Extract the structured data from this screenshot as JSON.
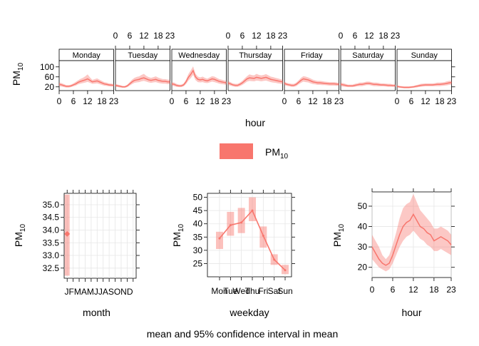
{
  "colors": {
    "series": "#f8766d",
    "band": "#f8766d",
    "grid": "#e6e6e6",
    "axis": "#000000"
  },
  "chart_data": [
    {
      "type": "line",
      "panel": "hour-by-weekday",
      "xlabel": "hour",
      "ylabel": "PM",
      "ylabel_sub": "10",
      "xlim": [
        0,
        23
      ],
      "ylim": [
        5,
        125
      ],
      "x_ticks": [
        "0",
        "6",
        "12",
        "18",
        "23"
      ],
      "y_ticks": [
        "20",
        "60",
        "100"
      ],
      "days": [
        "Monday",
        "Tuesday",
        "Wednesday",
        "Thursday",
        "Friday",
        "Saturday",
        "Sunday"
      ],
      "x": [
        0,
        1,
        2,
        3,
        4,
        5,
        6,
        7,
        8,
        9,
        10,
        11,
        12,
        13,
        14,
        15,
        16,
        17,
        18,
        19,
        20,
        21,
        22,
        23
      ],
      "series": [
        {
          "day": "Monday",
          "mean": [
            30,
            28,
            25,
            22,
            22,
            24,
            28,
            32,
            38,
            42,
            45,
            48,
            52,
            46,
            40,
            42,
            44,
            40,
            36,
            32,
            30,
            28,
            27,
            26
          ],
          "lower": [
            22,
            21,
            19,
            17,
            17,
            19,
            22,
            25,
            30,
            33,
            35,
            37,
            40,
            36,
            32,
            33,
            34,
            31,
            28,
            25,
            24,
            22,
            21,
            21
          ],
          "upper": [
            38,
            35,
            31,
            27,
            27,
            29,
            34,
            40,
            46,
            52,
            56,
            62,
            70,
            58,
            48,
            51,
            54,
            49,
            44,
            39,
            37,
            34,
            33,
            32
          ]
        },
        {
          "day": "Tuesday",
          "mean": [
            26,
            24,
            22,
            20,
            20,
            24,
            32,
            40,
            46,
            48,
            50,
            54,
            56,
            52,
            48,
            46,
            48,
            50,
            46,
            44,
            42,
            42,
            40,
            40
          ],
          "lower": [
            20,
            19,
            17,
            16,
            16,
            19,
            25,
            31,
            36,
            38,
            39,
            42,
            44,
            41,
            38,
            36,
            38,
            39,
            36,
            34,
            33,
            33,
            31,
            31
          ],
          "upper": [
            32,
            29,
            27,
            24,
            24,
            29,
            39,
            49,
            56,
            60,
            62,
            68,
            72,
            64,
            59,
            56,
            59,
            62,
            57,
            54,
            51,
            51,
            49,
            49
          ]
        },
        {
          "day": "Wednesday",
          "mean": [
            32,
            30,
            26,
            24,
            24,
            28,
            40,
            58,
            70,
            85,
            60,
            50,
            48,
            50,
            46,
            44,
            48,
            52,
            50,
            46,
            42,
            40,
            38,
            36
          ],
          "lower": [
            25,
            23,
            20,
            19,
            19,
            22,
            31,
            45,
            55,
            68,
            47,
            39,
            38,
            39,
            36,
            35,
            38,
            41,
            39,
            36,
            33,
            31,
            30,
            28
          ],
          "upper": [
            39,
            37,
            32,
            29,
            29,
            34,
            49,
            71,
            86,
            102,
            73,
            61,
            58,
            61,
            56,
            53,
            58,
            63,
            61,
            56,
            51,
            49,
            46,
            44
          ]
        },
        {
          "day": "Thursday",
          "mean": [
            36,
            32,
            28,
            26,
            26,
            30,
            36,
            44,
            52,
            56,
            55,
            54,
            58,
            56,
            54,
            56,
            58,
            54,
            50,
            48,
            46,
            44,
            42,
            40
          ],
          "lower": [
            28,
            25,
            22,
            20,
            20,
            23,
            28,
            34,
            41,
            44,
            43,
            42,
            45,
            44,
            42,
            44,
            45,
            42,
            39,
            37,
            36,
            34,
            33,
            31
          ],
          "upper": [
            44,
            39,
            34,
            32,
            32,
            37,
            44,
            54,
            63,
            70,
            67,
            66,
            72,
            68,
            66,
            68,
            71,
            66,
            61,
            59,
            56,
            54,
            51,
            49
          ]
        },
        {
          "day": "Friday",
          "mean": [
            34,
            30,
            28,
            26,
            26,
            30,
            38,
            46,
            52,
            50,
            48,
            44,
            40,
            38,
            36,
            36,
            35,
            34,
            33,
            32,
            32,
            32,
            31,
            30
          ],
          "lower": [
            27,
            24,
            22,
            20,
            20,
            23,
            30,
            36,
            41,
            39,
            38,
            34,
            31,
            30,
            28,
            28,
            27,
            27,
            26,
            25,
            25,
            25,
            24,
            24
          ],
          "upper": [
            41,
            36,
            34,
            32,
            32,
            37,
            46,
            56,
            63,
            61,
            58,
            54,
            49,
            46,
            44,
            44,
            43,
            41,
            40,
            39,
            39,
            39,
            38,
            36
          ]
        },
        {
          "day": "Saturday",
          "mean": [
            30,
            28,
            26,
            24,
            24,
            24,
            26,
            28,
            30,
            30,
            32,
            34,
            34,
            32,
            30,
            30,
            29,
            28,
            28,
            27,
            26,
            26,
            25,
            25
          ],
          "lower": [
            23,
            21,
            20,
            19,
            19,
            19,
            20,
            22,
            23,
            23,
            25,
            27,
            27,
            25,
            23,
            23,
            22,
            22,
            22,
            21,
            20,
            20,
            20,
            20
          ],
          "upper": [
            37,
            35,
            32,
            29,
            29,
            29,
            32,
            34,
            37,
            37,
            39,
            41,
            41,
            39,
            37,
            37,
            36,
            34,
            34,
            33,
            32,
            32,
            30,
            30
          ]
        },
        {
          "day": "Sunday",
          "mean": [
            22,
            20,
            19,
            18,
            18,
            18,
            19,
            20,
            22,
            24,
            26,
            27,
            28,
            28,
            28,
            28,
            29,
            30,
            30,
            31,
            32,
            34,
            36,
            37
          ],
          "lower": [
            17,
            16,
            15,
            14,
            14,
            14,
            15,
            16,
            17,
            19,
            20,
            21,
            22,
            22,
            22,
            22,
            23,
            23,
            23,
            24,
            25,
            26,
            28,
            29
          ],
          "upper": [
            27,
            24,
            23,
            22,
            22,
            22,
            23,
            24,
            27,
            29,
            32,
            33,
            34,
            34,
            34,
            34,
            35,
            37,
            37,
            38,
            39,
            42,
            44,
            45
          ]
        }
      ]
    },
    {
      "type": "scatter",
      "panel": "month",
      "xlabel": "month",
      "ylabel": "PM",
      "ylabel_sub": "10",
      "categories": [
        "J",
        "F",
        "M",
        "A",
        "M",
        "J",
        "J",
        "A",
        "S",
        "O",
        "N",
        "D"
      ],
      "x_tick_text": "JFMAMJJASOND",
      "ylim": [
        32.1,
        35.45
      ],
      "y_ticks": [
        32.5,
        33.0,
        33.5,
        34.0,
        34.5,
        35.0
      ],
      "y_tick_labels": [
        "32.5",
        "33.0",
        "33.5",
        "34.0",
        "34.5",
        "35.0"
      ],
      "points": [
        {
          "category": "J",
          "mean": 33.85,
          "lower": 32.2,
          "upper": 35.4
        }
      ]
    },
    {
      "type": "line",
      "panel": "weekday",
      "xlabel": "weekday",
      "ylabel": "PM",
      "ylabel_sub": "10",
      "categories": [
        "Mon",
        "Tue",
        "Wed",
        "Thu",
        "Fri",
        "Sat",
        "Sun"
      ],
      "ylim": [
        20,
        51.5
      ],
      "y_ticks": [
        25,
        30,
        35,
        40,
        45,
        50
      ],
      "y_tick_labels": [
        "25",
        "30",
        "35",
        "40",
        "45",
        "50"
      ],
      "mean": [
        34.5,
        39.5,
        40.5,
        45,
        35.5,
        26.5,
        22.5
      ],
      "lower": [
        30.5,
        35.5,
        36.5,
        41,
        31,
        24.5,
        21
      ],
      "upper": [
        37,
        44.5,
        46,
        50,
        39,
        28.5,
        24.5
      ]
    },
    {
      "type": "line",
      "panel": "hour",
      "xlabel": "hour",
      "ylabel": "PM",
      "ylabel_sub": "10",
      "xlim": [
        0,
        23
      ],
      "ylim": [
        15,
        57
      ],
      "x_ticks": [
        0,
        6,
        12,
        18,
        23
      ],
      "x_tick_labels": [
        "0",
        "6",
        "12",
        "18",
        "23"
      ],
      "y_ticks": [
        20,
        30,
        40,
        50
      ],
      "y_tick_labels": [
        "20",
        "30",
        "40",
        "50"
      ],
      "x": [
        0,
        1,
        2,
        3,
        4,
        5,
        6,
        7,
        8,
        9,
        10,
        11,
        12,
        13,
        14,
        15,
        16,
        17,
        18,
        19,
        20,
        21,
        22,
        23
      ],
      "mean": [
        30,
        27,
        24,
        22,
        21,
        22,
        26,
        31,
        36,
        40,
        42,
        43,
        46,
        43,
        40,
        39,
        37,
        36,
        33,
        34,
        35,
        34,
        33,
        31
      ],
      "lower": [
        24,
        22,
        20,
        19,
        18,
        19,
        22,
        26,
        30,
        33,
        35,
        36,
        38,
        36,
        34,
        33,
        31,
        30,
        28,
        28,
        29,
        28,
        27,
        26
      ],
      "upper": [
        36,
        33,
        30,
        26,
        24,
        26,
        31,
        37,
        44,
        49,
        51,
        52,
        56,
        52,
        48,
        46,
        44,
        42,
        39,
        39,
        40,
        39,
        38,
        36
      ]
    }
  ],
  "legend": {
    "label": "PM",
    "label_sub": "10"
  },
  "caption": "mean and 95% confidence interval in mean"
}
